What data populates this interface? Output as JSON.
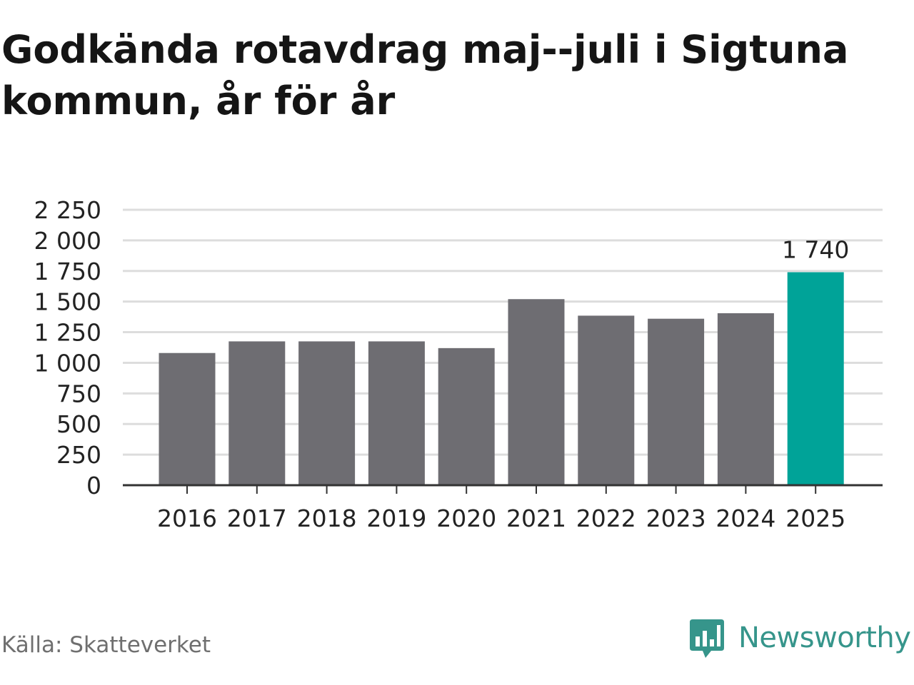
{
  "header": {
    "title": "Godkända rotavdrag maj--juli i Sigtuna kommun, år för år"
  },
  "footer": {
    "source": "Källa: Skatteverket",
    "brand": "Newsworthy",
    "brand_icon": "newsworthy-chart-bubble-icon"
  },
  "colors": {
    "bar": "#6e6d72",
    "highlight": "#00a398",
    "grid": "#dddddd",
    "axis": "#333333",
    "text": "#222222",
    "brand": "#36958b"
  },
  "chart_data": {
    "type": "bar",
    "title": "Godkända rotavdrag maj--juli i Sigtuna kommun, år för år",
    "xlabel": "",
    "ylabel": "",
    "categories": [
      "2016",
      "2017",
      "2018",
      "2019",
      "2020",
      "2021",
      "2022",
      "2023",
      "2024",
      "2025"
    ],
    "values": [
      1080,
      1175,
      1175,
      1175,
      1120,
      1520,
      1385,
      1360,
      1405,
      1740
    ],
    "highlight_index": 9,
    "data_labels": [
      {
        "index": 9,
        "text": "1 740"
      }
    ],
    "ylim": [
      0,
      2250
    ],
    "yticks": [
      0,
      250,
      500,
      750,
      1000,
      1250,
      1500,
      1750,
      2000,
      2250
    ],
    "ytick_labels": [
      "0",
      "250",
      "500",
      "750",
      "1 000",
      "1 250",
      "1 500",
      "1 750",
      "2 000",
      "2 250"
    ],
    "grid": true,
    "legend": "none"
  }
}
